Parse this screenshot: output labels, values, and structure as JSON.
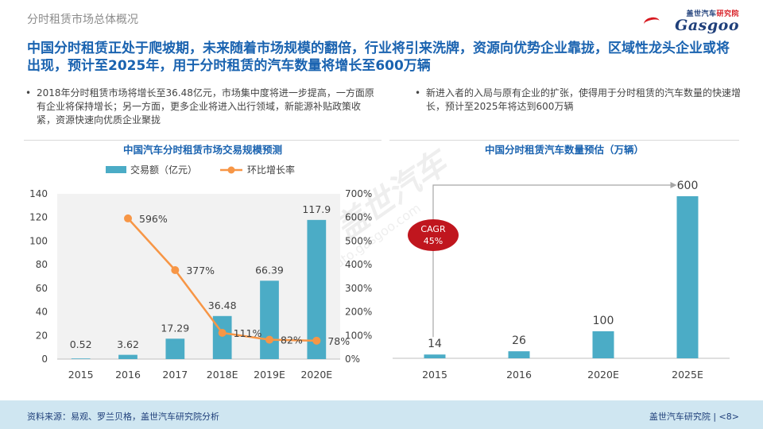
{
  "header": {
    "section_title": "分时租赁市场总体概况",
    "logo_cn_main": "盖世汽车",
    "logo_cn_sub": "研究院",
    "logo_en": "Gasgoo"
  },
  "headline": "中国分时租赁正处于爬坡期，未来随着市场规模的翻倍，行业将引来洗牌，资源向优势企业靠拢，区域性龙头企业或将出现，预计至2025年，用于分时租赁的汽车数量将增长至600万辆",
  "bullets": {
    "left": "2018年分时租赁市场将增长至36.48亿元，市场集中度将进一步提高，一方面原有企业将保持增长；另一方面，更多企业将进入出行领域，新能源补贴政策收紧，资源快速向优质企业聚拢",
    "right": "新进入者的入局与原有企业的扩张，使得用于分时租赁的汽车数量的快速增长，预计至2025年将达到600万辆"
  },
  "watermark": {
    "main": "盖世汽车",
    "sub": "auto.gasgoo.com"
  },
  "chart_data": [
    {
      "type": "bar",
      "title": "中国汽车分时租赁市场交易规模预测",
      "categories": [
        "2015",
        "2016",
        "2017",
        "2018E",
        "2019E",
        "2020E"
      ],
      "series": [
        {
          "name": "交易额（亿元）",
          "type": "bar",
          "axis": "left",
          "values": [
            0.52,
            3.62,
            17.29,
            36.48,
            66.39,
            117.9
          ],
          "labels": [
            "0.52",
            "3.62",
            "17.29",
            "36.48",
            "66.39",
            "117.9"
          ]
        },
        {
          "name": "环比增长率",
          "type": "line",
          "axis": "right",
          "values": [
            null,
            596,
            377,
            111,
            82,
            78
          ],
          "labels": [
            "",
            "596%",
            "377%",
            "111%",
            "82%",
            "78%"
          ]
        }
      ],
      "ylim": [
        0,
        140
      ],
      "yticks": [
        "0",
        "20",
        "40",
        "60",
        "80",
        "100",
        "120",
        "140"
      ],
      "y2lim": [
        0,
        700
      ],
      "y2ticks": [
        "0%",
        "100%",
        "200%",
        "300%",
        "400%",
        "500%",
        "600%",
        "700%"
      ],
      "legend_position": "top",
      "plot_background": "#f2f2f2",
      "colors": {
        "bar": "#4bacc6",
        "line": "#f79646"
      }
    },
    {
      "type": "bar",
      "title": "中国分时租赁汽车数量预估（万辆）",
      "categories": [
        "2015",
        "2016",
        "2020E",
        "2025E"
      ],
      "values": [
        14,
        26,
        100,
        600
      ],
      "labels": [
        "14",
        "26",
        "100",
        "600"
      ],
      "ylim": [
        0,
        650
      ],
      "annotation": {
        "text_line1": "CAGR",
        "text_line2": "45%",
        "color": "#c0161e"
      },
      "colors": {
        "bar": "#4bacc6"
      }
    }
  ],
  "footer": {
    "source": "资料来源：易观、罗兰贝格，盖世汽车研究院分析",
    "page": "盖世汽车研究院  |  <8>"
  }
}
